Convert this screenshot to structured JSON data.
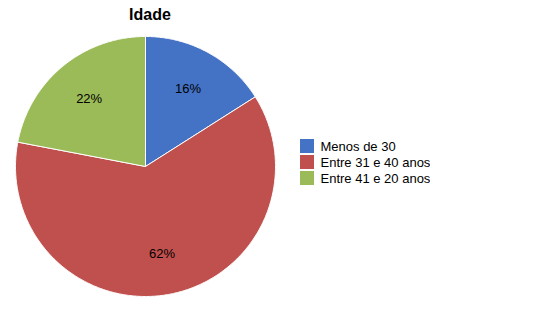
{
  "chart_data": {
    "type": "pie",
    "title": "Idade",
    "categories": [
      "Menos de 30",
      "Entre 31 e 40 anos",
      "Entre 41 e 20 anos"
    ],
    "values": [
      16,
      62,
      22
    ],
    "value_labels": [
      "16%",
      "62%",
      "22%"
    ],
    "colors": [
      "#4472C4",
      "#C0504D",
      "#9BBB59"
    ],
    "data_labels": true,
    "legend": "right"
  }
}
